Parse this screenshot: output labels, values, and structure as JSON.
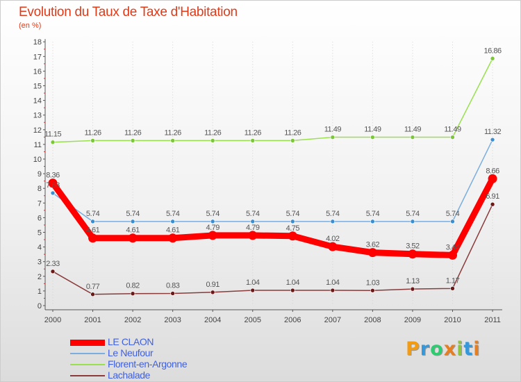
{
  "title": "Evolution du Taux de Taxe d'Habitation",
  "subtitle": "(en %)",
  "logo": {
    "letters": [
      "P",
      "r",
      "o",
      "x",
      "i",
      "t",
      "i"
    ],
    "colors": [
      "#f39c12",
      "#3498db",
      "#2ecc71",
      "#e67e22",
      "#8cc63f",
      "#3498db",
      "#e67e22"
    ]
  },
  "chart_data": {
    "type": "line",
    "title": "Evolution du Taux de Taxe d'Habitation",
    "ylabel": "(en %)",
    "xlabel": "",
    "categories": [
      "2000",
      "2001",
      "2002",
      "2003",
      "2004",
      "2005",
      "2006",
      "2007",
      "2008",
      "2009",
      "2010",
      "2011"
    ],
    "ylim": [
      0,
      18
    ],
    "yticks": [
      "0",
      "1",
      "2",
      "3",
      "4",
      "5",
      "6",
      "7",
      "8",
      "9",
      "10",
      "11",
      "12",
      "13",
      "14",
      "15",
      "16",
      "17",
      "18"
    ],
    "legend_position": "bottom-left",
    "series": [
      {
        "name": "Florent-en-Argonne",
        "color": "#99e04d",
        "marker": "#7cc63a",
        "bold": false,
        "values": [
          11.15,
          11.26,
          11.26,
          11.26,
          11.26,
          11.26,
          11.26,
          11.49,
          11.49,
          11.49,
          11.49,
          16.86
        ],
        "labels": [
          "11.15",
          "11.26",
          "11.26",
          "11.26",
          "11.26",
          "11.26",
          "11.26",
          "11.49",
          "11.49",
          "11.49",
          "11.49",
          "16.86"
        ]
      },
      {
        "name": "Le Neufour",
        "color": "#7aaede",
        "marker": "#3b8fd0",
        "bold": false,
        "values": [
          7.68,
          5.74,
          5.74,
          5.74,
          5.74,
          5.74,
          5.74,
          5.74,
          5.74,
          5.74,
          5.74,
          11.32
        ],
        "labels": [
          "7.68",
          "5.74",
          "5.74",
          "5.74",
          "5.74",
          "5.74",
          "5.74",
          "5.74",
          "5.74",
          "5.74",
          "5.74",
          "11.32"
        ]
      },
      {
        "name": "Lachalade",
        "color": "#8a3a3a",
        "marker": "#6b1818",
        "bold": false,
        "values": [
          2.33,
          0.77,
          0.82,
          0.83,
          0.91,
          1.04,
          1.04,
          1.04,
          1.03,
          1.13,
          1.17,
          6.91
        ],
        "labels": [
          "2.33",
          "0.77",
          "0.82",
          "0.83",
          "0.91",
          "1.04",
          "1.04",
          "1.04",
          "1.03",
          "1.13",
          "1.17",
          "6.91"
        ]
      },
      {
        "name": "LE CLAON",
        "color": "#ff0000",
        "marker": "#ff0000",
        "bold": true,
        "values": [
          8.36,
          4.61,
          4.61,
          4.61,
          4.79,
          4.79,
          4.75,
          4.02,
          3.62,
          3.52,
          3.44,
          8.66
        ],
        "labels": [
          "8.36",
          "4.61",
          "4.61",
          "4.61",
          "4.79",
          "4.79",
          "4.75",
          "4.02",
          "3.62",
          "3.52",
          "3.44",
          "8.66"
        ]
      }
    ],
    "legend": [
      {
        "name": "LE CLAON",
        "color": "#ff0000",
        "bold": true
      },
      {
        "name": "Le Neufour",
        "color": "#7aaede",
        "bold": false
      },
      {
        "name": "Florent-en-Argonne",
        "color": "#99e04d",
        "bold": false
      },
      {
        "name": "Lachalade",
        "color": "#8a3a3a",
        "bold": false
      }
    ]
  }
}
